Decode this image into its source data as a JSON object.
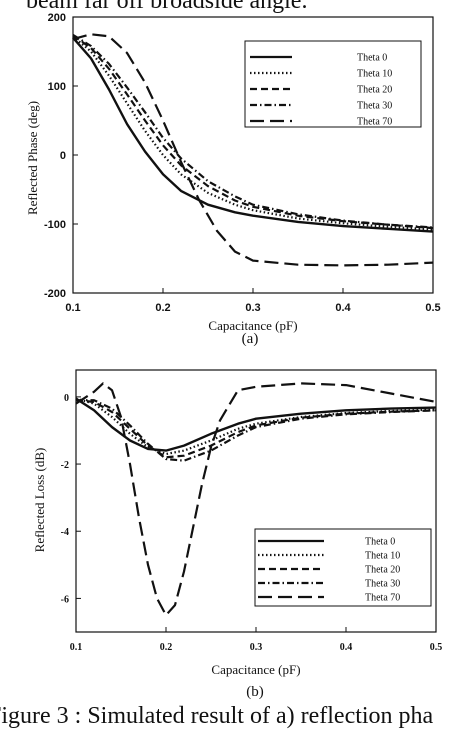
{
  "captions": {
    "top": "beam far off broadside angle.",
    "bottom": "Figure 3 :  Simulated  result of  a)  reflection pha"
  },
  "chart_data": [
    {
      "type": "line",
      "panel_label": "(a)",
      "xlabel": "Capacitance (pF)",
      "ylabel": "Reflected Phase (deg)",
      "xlim": [
        0.1,
        0.5
      ],
      "ylim": [
        -200,
        200
      ],
      "x_ticks": [
        "0.1",
        "0.2",
        "0.3",
        "0.4",
        "0.5"
      ],
      "y_ticks": [
        "200",
        "100",
        "0",
        "-100",
        "-200"
      ],
      "grid": false,
      "legend_position": "top-right",
      "series": [
        {
          "name": "Theta 0",
          "style": "solid",
          "x": [
            0.1,
            0.12,
            0.14,
            0.16,
            0.18,
            0.2,
            0.22,
            0.25,
            0.28,
            0.3,
            0.35,
            0.4,
            0.45,
            0.5
          ],
          "y": [
            170,
            140,
            95,
            45,
            5,
            -28,
            -52,
            -72,
            -83,
            -88,
            -97,
            -103,
            -107,
            -111
          ]
        },
        {
          "name": "Theta 10",
          "style": "dotted",
          "x": [
            0.1,
            0.12,
            0.14,
            0.16,
            0.18,
            0.2,
            0.22,
            0.25,
            0.28,
            0.3,
            0.35,
            0.4,
            0.45,
            0.5
          ],
          "y": [
            172,
            150,
            115,
            75,
            35,
            0,
            -28,
            -55,
            -72,
            -80,
            -92,
            -99,
            -104,
            -108
          ]
        },
        {
          "name": "Theta 20",
          "style": "dashed",
          "x": [
            0.1,
            0.12,
            0.14,
            0.16,
            0.18,
            0.2,
            0.22,
            0.25,
            0.28,
            0.3,
            0.35,
            0.4,
            0.45,
            0.5
          ],
          "y": [
            173,
            155,
            125,
            88,
            50,
            14,
            -15,
            -45,
            -66,
            -75,
            -88,
            -96,
            -101,
            -106
          ]
        },
        {
          "name": "Theta 30",
          "style": "dashdot",
          "x": [
            0.1,
            0.12,
            0.14,
            0.16,
            0.18,
            0.2,
            0.22,
            0.25,
            0.28,
            0.3,
            0.35,
            0.4,
            0.45,
            0.5
          ],
          "y": [
            174,
            158,
            132,
            98,
            62,
            25,
            -5,
            -38,
            -60,
            -72,
            -86,
            -95,
            -101,
            -105
          ]
        },
        {
          "name": "Theta 70",
          "style": "longdash",
          "x": [
            0.1,
            0.12,
            0.14,
            0.16,
            0.18,
            0.2,
            0.22,
            0.24,
            0.26,
            0.28,
            0.3,
            0.35,
            0.4,
            0.45,
            0.5
          ],
          "y": [
            168,
            175,
            172,
            148,
            105,
            50,
            -10,
            -65,
            -110,
            -140,
            -153,
            -159,
            -160,
            -159,
            -156
          ]
        }
      ]
    },
    {
      "type": "line",
      "panel_label": "(b)",
      "xlabel": "Capacitance (pF)",
      "ylabel": "Reflected Loss (dB)",
      "xlim": [
        0.1,
        0.5
      ],
      "ylim": [
        -7,
        0.8
      ],
      "x_ticks": [
        "0.1",
        "0.2",
        "0.3",
        "0.4",
        "0.5"
      ],
      "y_ticks": [
        "0",
        "-2",
        "-4",
        "-6"
      ],
      "grid": false,
      "legend_position": "bottom-right",
      "series": [
        {
          "name": "Theta 0",
          "style": "solid",
          "x": [
            0.1,
            0.12,
            0.14,
            0.16,
            0.18,
            0.2,
            0.22,
            0.25,
            0.28,
            0.3,
            0.35,
            0.4,
            0.45,
            0.5
          ],
          "y": [
            -0.05,
            -0.4,
            -0.9,
            -1.3,
            -1.55,
            -1.6,
            -1.45,
            -1.1,
            -0.8,
            -0.65,
            -0.5,
            -0.4,
            -0.35,
            -0.32
          ]
        },
        {
          "name": "Theta 10",
          "style": "dotted",
          "x": [
            0.1,
            0.12,
            0.14,
            0.16,
            0.18,
            0.2,
            0.22,
            0.25,
            0.28,
            0.3,
            0.35,
            0.4,
            0.45,
            0.5
          ],
          "y": [
            -0.05,
            -0.2,
            -0.6,
            -1.1,
            -1.5,
            -1.7,
            -1.6,
            -1.3,
            -0.95,
            -0.8,
            -0.6,
            -0.48,
            -0.42,
            -0.38
          ]
        },
        {
          "name": "Theta 20",
          "style": "dashed",
          "x": [
            0.1,
            0.12,
            0.14,
            0.16,
            0.18,
            0.2,
            0.22,
            0.25,
            0.28,
            0.3,
            0.35,
            0.4,
            0.45,
            0.5
          ],
          "y": [
            -0.1,
            -0.15,
            -0.45,
            -0.95,
            -1.45,
            -1.8,
            -1.75,
            -1.45,
            -1.05,
            -0.85,
            -0.62,
            -0.5,
            -0.44,
            -0.4
          ]
        },
        {
          "name": "Theta 30",
          "style": "dashdot",
          "x": [
            0.1,
            0.12,
            0.14,
            0.16,
            0.18,
            0.2,
            0.22,
            0.25,
            0.28,
            0.3,
            0.35,
            0.4,
            0.45,
            0.5
          ],
          "y": [
            -0.1,
            -0.1,
            -0.35,
            -0.85,
            -1.4,
            -1.85,
            -1.9,
            -1.6,
            -1.15,
            -0.9,
            -0.65,
            -0.52,
            -0.45,
            -0.4
          ]
        },
        {
          "name": "Theta 70",
          "style": "longdash",
          "x": [
            0.1,
            0.12,
            0.13,
            0.14,
            0.15,
            0.16,
            0.17,
            0.18,
            0.19,
            0.2,
            0.21,
            0.22,
            0.23,
            0.24,
            0.25,
            0.26,
            0.28,
            0.3,
            0.35,
            0.4,
            0.45,
            0.5
          ],
          "y": [
            -0.2,
            0.15,
            0.4,
            0.2,
            -0.6,
            -2.0,
            -3.6,
            -5.0,
            -6.0,
            -6.5,
            -6.2,
            -5.2,
            -3.9,
            -2.6,
            -1.5,
            -0.7,
            0.2,
            0.3,
            0.4,
            0.35,
            0.1,
            -0.15
          ]
        }
      ]
    }
  ]
}
